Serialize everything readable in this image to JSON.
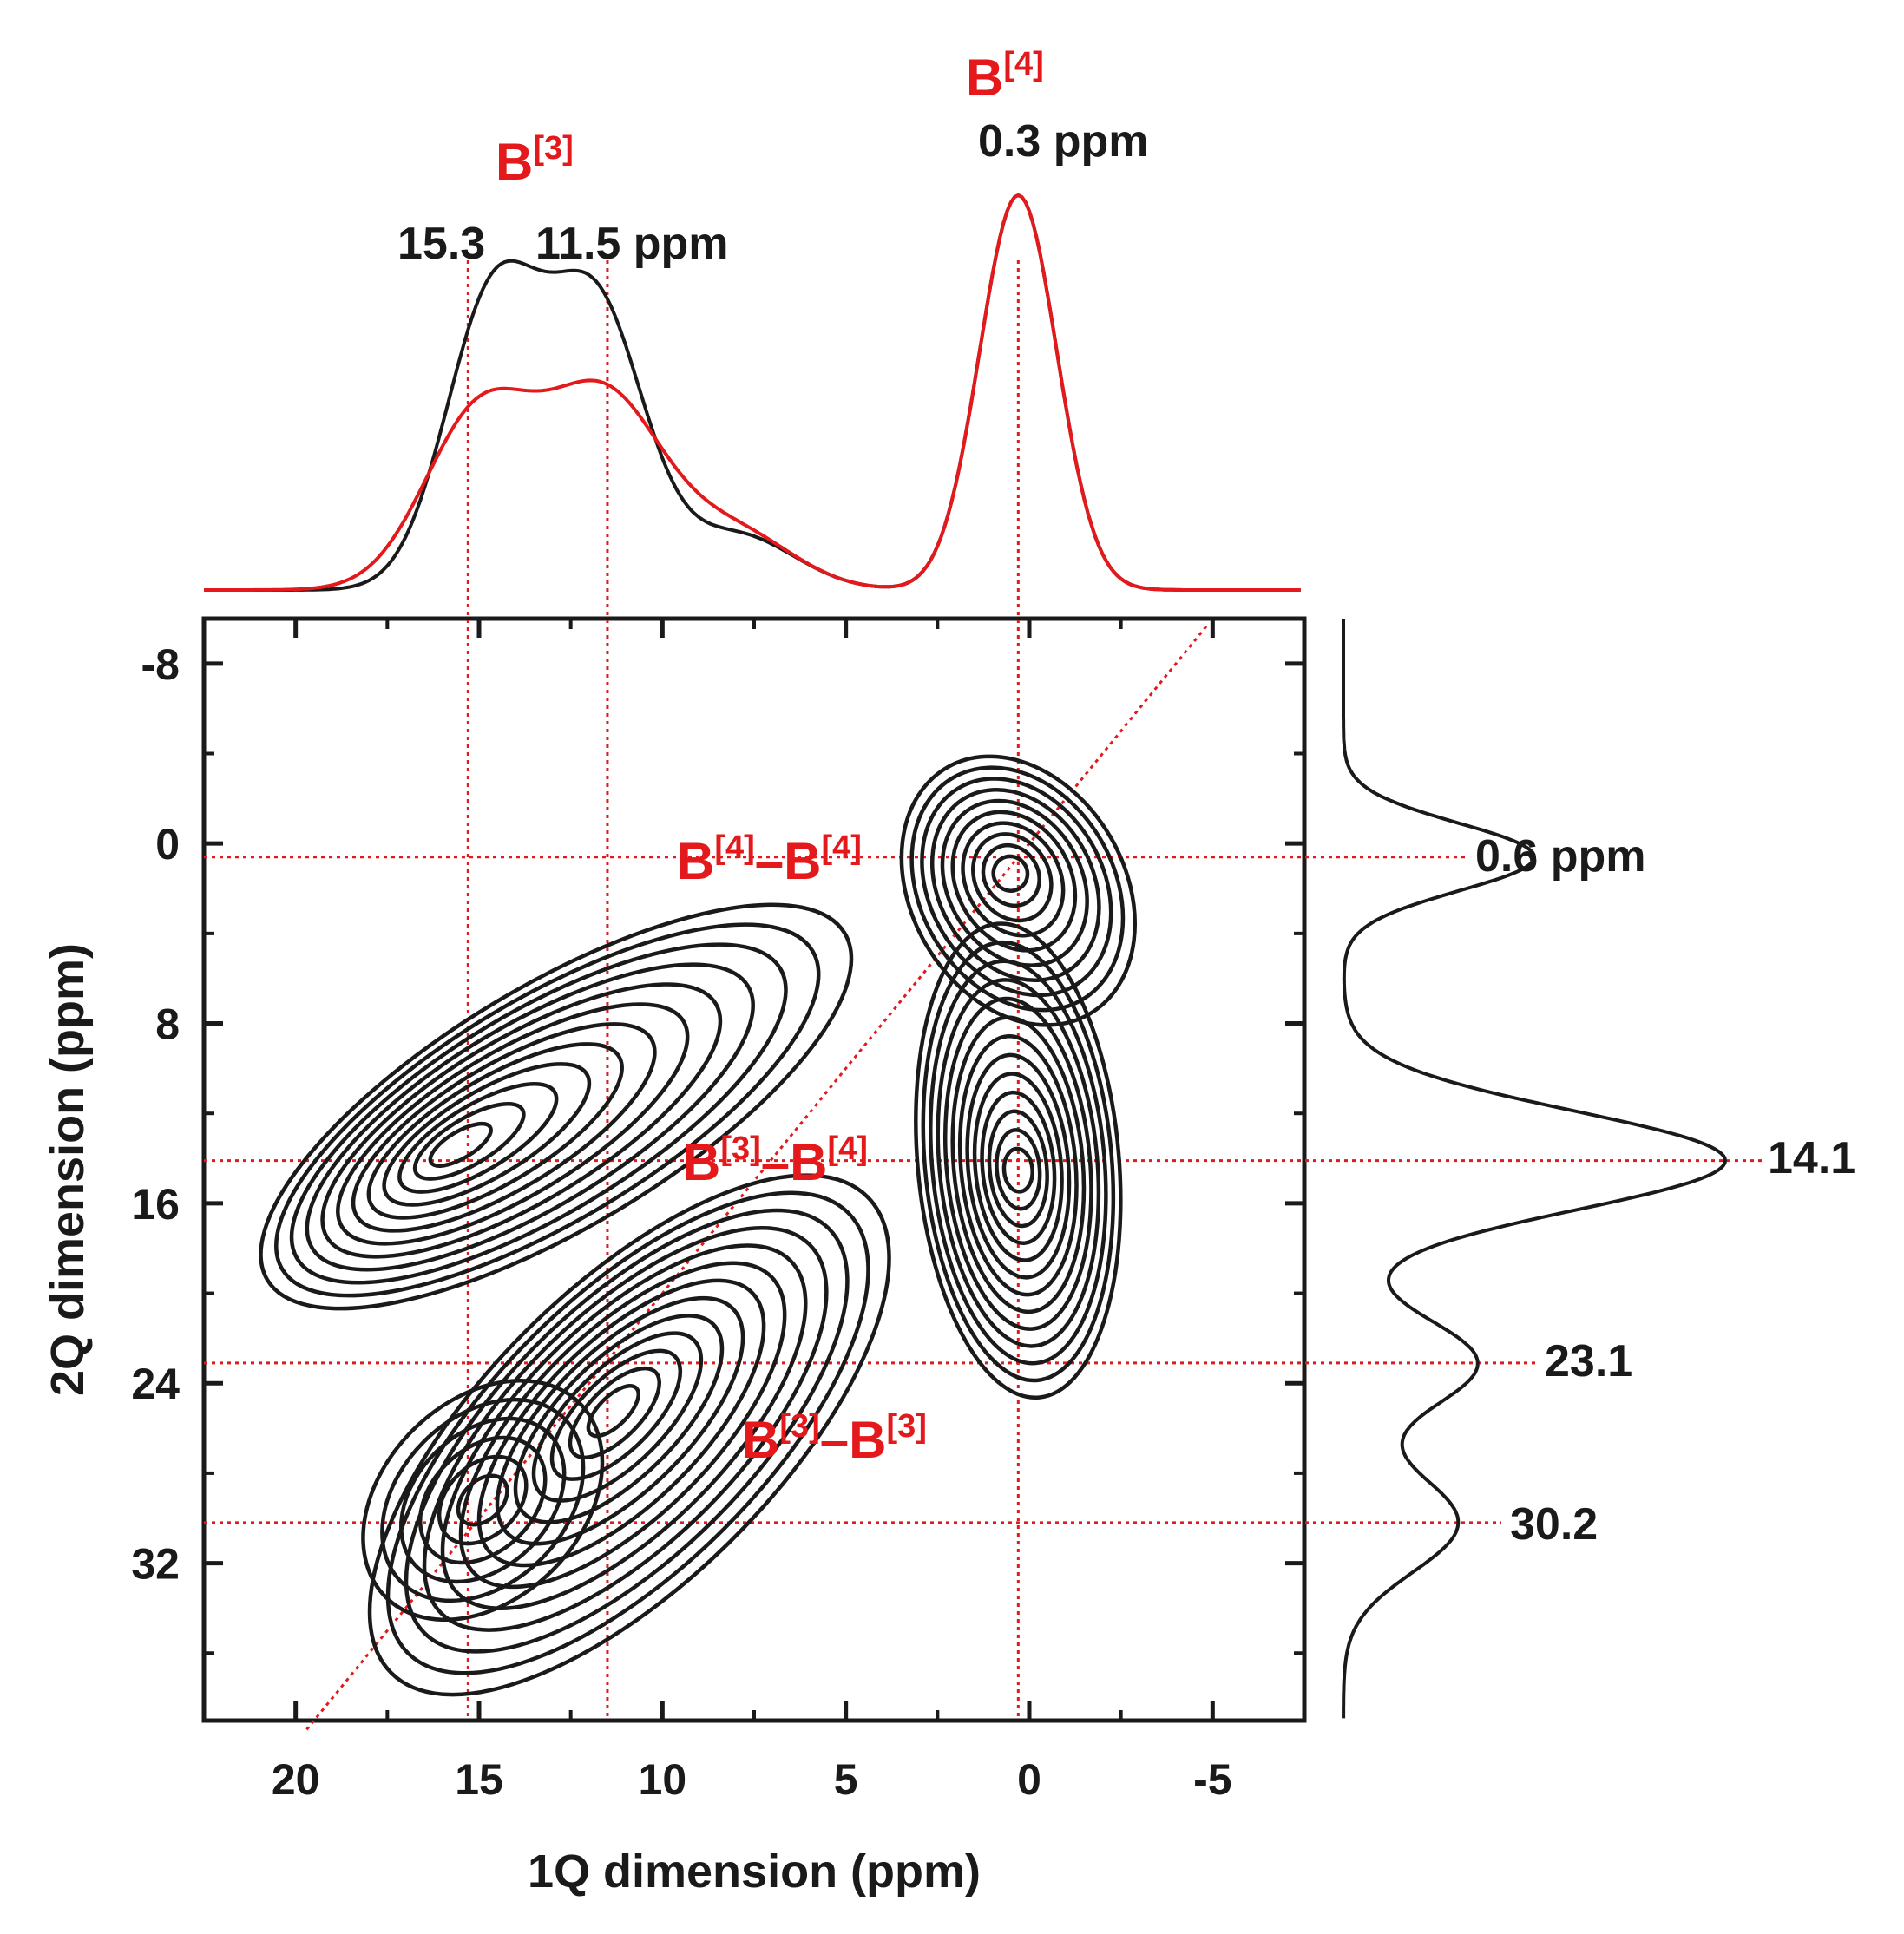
{
  "chart_data": {
    "type": "contour",
    "xlabel": "1Q dimension (ppm)",
    "ylabel": "2Q dimension (ppm)",
    "xlim": [
      22.5,
      -7.5
    ],
    "ylim": [
      -10,
      39
    ],
    "x_reversed": true,
    "y_reversed": true,
    "x_ticks": [
      20,
      15,
      10,
      5,
      0,
      -5
    ],
    "y_ticks": [
      -8,
      0,
      8,
      16,
      24,
      32
    ],
    "grid": false,
    "diagonal": {
      "description": "2Q = 2 x 1Q",
      "color": "#e3191c",
      "style": "dotted"
    },
    "guide_lines": {
      "vertical": [
        15.3,
        11.5,
        0.3
      ],
      "horizontal": [
        0.6,
        14.1,
        23.1,
        30.2
      ],
      "color": "#e3191c",
      "style": "dotted"
    },
    "contour_peaks": [
      {
        "name": "B[4]-B[4]",
        "x": 0.3,
        "y": 0.6
      },
      {
        "name": "B[3]-B[4]",
        "x": 15.3,
        "y": 14.1
      },
      {
        "name": "B[3]-B[4]",
        "x": 0.3,
        "y": 14.1
      },
      {
        "name": "B[3]-B[3]",
        "x": 11.5,
        "y": 23.1
      },
      {
        "name": "B[3]-B[3]",
        "x": 15.3,
        "y": 30.2
      }
    ],
    "top_projection": {
      "series": [
        {
          "color": "#1a1a1a",
          "peaks": [
            {
              "x": 14.6,
              "height": 0.74
            },
            {
              "x": 11.8,
              "height": 0.7
            },
            {
              "x": 0.3,
              "height": 1.0
            }
          ]
        },
        {
          "color": "#e3191c",
          "peaks": [
            {
              "x": 15.0,
              "height": 0.44
            },
            {
              "x": 11.6,
              "height": 0.48
            },
            {
              "x": 0.3,
              "height": 1.0
            }
          ]
        }
      ]
    },
    "right_projection": {
      "color": "#1a1a1a",
      "peaks": [
        {
          "y": 0.6,
          "height": 0.5
        },
        {
          "y": 14.1,
          "height": 1.0
        },
        {
          "y": 23.1,
          "height": 0.35
        },
        {
          "y": 30.2,
          "height": 0.3
        }
      ]
    },
    "annotations": {
      "top_b3_sup": "[3]",
      "top_b3_shifts": "15.3    11.5 ppm",
      "top_b4_sup": "[4]",
      "top_b4_shift": "0.3 ppm",
      "right_1": "0.6 ppm",
      "right_2": "14.1",
      "right_3": "23.1",
      "right_4": "30.2",
      "pair_b4b4_a": "[4]",
      "pair_b4b4_b": "[4]",
      "pair_b3b4_a": "[3]",
      "pair_b3b4_b": "[4]",
      "pair_b3b3_a": "[3]",
      "pair_b3b3_b": "[3]",
      "site_letter": "B",
      "dash": "–"
    }
  }
}
